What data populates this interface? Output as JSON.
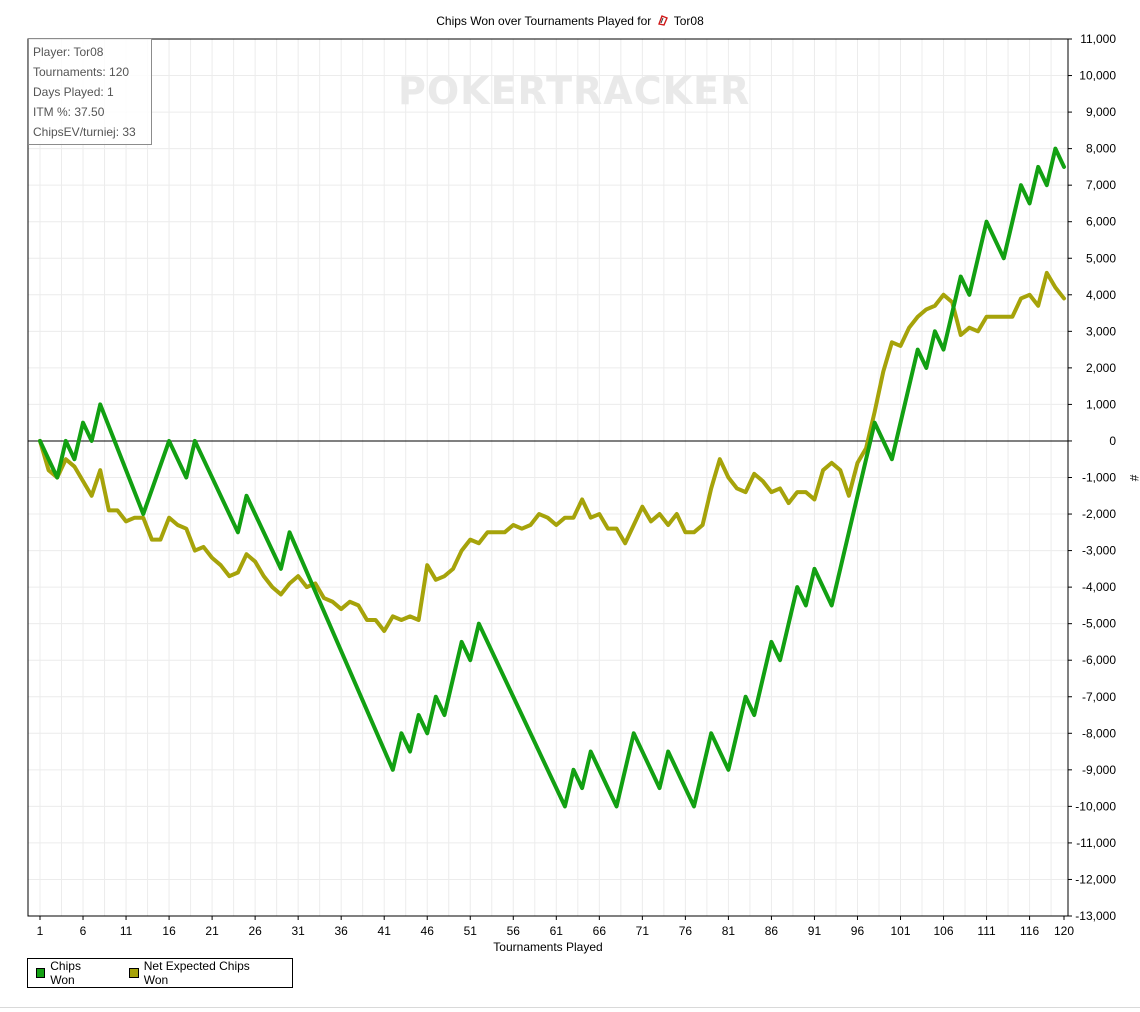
{
  "title": {
    "prefix": "Chips Won over Tournaments Played for",
    "player": "Tor08"
  },
  "stats": {
    "player": "Player: Tor08",
    "tournaments": "Tournaments: 120",
    "days_played": "Days Played: 1",
    "itm": "ITM %: 37.50",
    "chipsev": "ChipsEV/turniej: 33"
  },
  "watermark": "POKERTRACKER",
  "colors": {
    "chips_won": "#12a012",
    "net_expected": "#a6a30a",
    "grid": "#ececec",
    "zero_line": "#000000"
  },
  "chart_data": {
    "type": "line",
    "title": "Chips Won over Tournaments Played for Tor08",
    "xlabel": "Tournaments Played",
    "ylabel": "#",
    "xlim": [
      1,
      120
    ],
    "ylim": [
      -13000,
      11000
    ],
    "x_ticks": [
      1,
      6,
      11,
      16,
      21,
      26,
      31,
      36,
      41,
      46,
      51,
      56,
      61,
      66,
      71,
      76,
      81,
      86,
      91,
      96,
      101,
      106,
      111,
      116,
      120
    ],
    "y_ticks": [
      11000,
      10000,
      9000,
      8000,
      7000,
      6000,
      5000,
      4000,
      3000,
      2000,
      1000,
      0,
      -1000,
      -2000,
      -3000,
      -4000,
      -5000,
      -6000,
      -7000,
      -8000,
      -9000,
      -10000,
      -11000,
      -12000,
      -13000
    ],
    "y_tick_labels": [
      "11,000",
      "10,000",
      "9,000",
      "8,000",
      "7,000",
      "6,000",
      "5,000",
      "4,000",
      "3,000",
      "2,000",
      "1,000",
      "0",
      "-1,000",
      "-2,000",
      "-3,000",
      "-4,000",
      "-5,000",
      "-6,000",
      "-7,000",
      "-8,000",
      "-9,000",
      "-10,000",
      "-11,000",
      "-12,000",
      "-13,000"
    ],
    "grid": true,
    "legend_position": "bottom-left",
    "series": [
      {
        "name": "Chips Won",
        "color": "#12a012",
        "points": [
          [
            1,
            0
          ],
          [
            3,
            -1000
          ],
          [
            4,
            0
          ],
          [
            5,
            -500
          ],
          [
            6,
            500
          ],
          [
            7,
            0
          ],
          [
            8,
            1000
          ],
          [
            13,
            -2000
          ],
          [
            16,
            0
          ],
          [
            18,
            -1000
          ],
          [
            19,
            0
          ],
          [
            24,
            -2500
          ],
          [
            25,
            -1500
          ],
          [
            29,
            -3500
          ],
          [
            30,
            -2500
          ],
          [
            42,
            -9000
          ],
          [
            43,
            -8000
          ],
          [
            44,
            -8500
          ],
          [
            45,
            -7500
          ],
          [
            46,
            -8000
          ],
          [
            47,
            -7000
          ],
          [
            48,
            -7500
          ],
          [
            50,
            -5500
          ],
          [
            51,
            -6000
          ],
          [
            52,
            -5000
          ],
          [
            62,
            -10000
          ],
          [
            63,
            -9000
          ],
          [
            64,
            -9500
          ],
          [
            65,
            -8500
          ],
          [
            68,
            -10000
          ],
          [
            70,
            -8000
          ],
          [
            73,
            -9500
          ],
          [
            74,
            -8500
          ],
          [
            77,
            -10000
          ],
          [
            79,
            -8000
          ],
          [
            81,
            -9000
          ],
          [
            83,
            -7000
          ],
          [
            84,
            -7500
          ],
          [
            86,
            -5500
          ],
          [
            87,
            -6000
          ],
          [
            89,
            -4000
          ],
          [
            90,
            -4500
          ],
          [
            91,
            -3500
          ],
          [
            93,
            -4500
          ],
          [
            98,
            500
          ],
          [
            100,
            -500
          ],
          [
            103,
            2500
          ],
          [
            104,
            2000
          ],
          [
            105,
            3000
          ],
          [
            106,
            2500
          ],
          [
            108,
            4500
          ],
          [
            109,
            4000
          ],
          [
            111,
            6000
          ],
          [
            113,
            5000
          ],
          [
            115,
            7000
          ],
          [
            116,
            6500
          ],
          [
            117,
            7500
          ],
          [
            118,
            7000
          ],
          [
            119,
            8000
          ],
          [
            120,
            7500
          ]
        ]
      },
      {
        "name": "Net Expected Chips Won",
        "color": "#a6a30a",
        "points": [
          [
            1,
            0
          ],
          [
            2,
            -800
          ],
          [
            3,
            -1000
          ],
          [
            4,
            -500
          ],
          [
            5,
            -700
          ],
          [
            6,
            -1100
          ],
          [
            7,
            -1500
          ],
          [
            8,
            -800
          ],
          [
            9,
            -1900
          ],
          [
            10,
            -1900
          ],
          [
            11,
            -2200
          ],
          [
            12,
            -2100
          ],
          [
            13,
            -2100
          ],
          [
            14,
            -2700
          ],
          [
            15,
            -2700
          ],
          [
            16,
            -2100
          ],
          [
            17,
            -2300
          ],
          [
            18,
            -2400
          ],
          [
            19,
            -3000
          ],
          [
            20,
            -2900
          ],
          [
            21,
            -3200
          ],
          [
            22,
            -3400
          ],
          [
            23,
            -3700
          ],
          [
            24,
            -3600
          ],
          [
            25,
            -3100
          ],
          [
            26,
            -3300
          ],
          [
            27,
            -3700
          ],
          [
            28,
            -4000
          ],
          [
            29,
            -4200
          ],
          [
            30,
            -3900
          ],
          [
            31,
            -3700
          ],
          [
            32,
            -4000
          ],
          [
            33,
            -3900
          ],
          [
            34,
            -4300
          ],
          [
            35,
            -4400
          ],
          [
            36,
            -4600
          ],
          [
            37,
            -4400
          ],
          [
            38,
            -4500
          ],
          [
            39,
            -4900
          ],
          [
            40,
            -4900
          ],
          [
            41,
            -5200
          ],
          [
            42,
            -4800
          ],
          [
            43,
            -4900
          ],
          [
            44,
            -4800
          ],
          [
            45,
            -4900
          ],
          [
            46,
            -3400
          ],
          [
            47,
            -3800
          ],
          [
            48,
            -3700
          ],
          [
            49,
            -3500
          ],
          [
            50,
            -3000
          ],
          [
            51,
            -2700
          ],
          [
            52,
            -2800
          ],
          [
            53,
            -2500
          ],
          [
            54,
            -2500
          ],
          [
            55,
            -2500
          ],
          [
            56,
            -2300
          ],
          [
            57,
            -2400
          ],
          [
            58,
            -2300
          ],
          [
            59,
            -2000
          ],
          [
            60,
            -2100
          ],
          [
            61,
            -2300
          ],
          [
            62,
            -2100
          ],
          [
            63,
            -2100
          ],
          [
            64,
            -1600
          ],
          [
            65,
            -2100
          ],
          [
            66,
            -2000
          ],
          [
            67,
            -2400
          ],
          [
            68,
            -2400
          ],
          [
            69,
            -2800
          ],
          [
            70,
            -2300
          ],
          [
            71,
            -1800
          ],
          [
            72,
            -2200
          ],
          [
            73,
            -2000
          ],
          [
            74,
            -2300
          ],
          [
            75,
            -2000
          ],
          [
            76,
            -2500
          ],
          [
            77,
            -2500
          ],
          [
            78,
            -2300
          ],
          [
            79,
            -1300
          ],
          [
            80,
            -500
          ],
          [
            81,
            -1000
          ],
          [
            82,
            -1300
          ],
          [
            83,
            -1400
          ],
          [
            84,
            -900
          ],
          [
            85,
            -1100
          ],
          [
            86,
            -1400
          ],
          [
            87,
            -1300
          ],
          [
            88,
            -1700
          ],
          [
            89,
            -1400
          ],
          [
            90,
            -1400
          ],
          [
            91,
            -1600
          ],
          [
            92,
            -800
          ],
          [
            93,
            -600
          ],
          [
            94,
            -800
          ],
          [
            95,
            -1500
          ],
          [
            96,
            -600
          ],
          [
            97,
            -200
          ],
          [
            98,
            800
          ],
          [
            99,
            1900
          ],
          [
            100,
            2700
          ],
          [
            101,
            2600
          ],
          [
            102,
            3100
          ],
          [
            103,
            3400
          ],
          [
            104,
            3600
          ],
          [
            105,
            3700
          ],
          [
            106,
            4000
          ],
          [
            107,
            3800
          ],
          [
            108,
            2900
          ],
          [
            109,
            3100
          ],
          [
            110,
            3000
          ],
          [
            111,
            3400
          ],
          [
            112,
            3400
          ],
          [
            113,
            3400
          ],
          [
            114,
            3400
          ],
          [
            115,
            3900
          ],
          [
            116,
            4000
          ],
          [
            117,
            3700
          ],
          [
            118,
            4600
          ],
          [
            119,
            4200
          ],
          [
            120,
            3900
          ]
        ]
      }
    ]
  },
  "legend": {
    "chips_won": "Chips Won",
    "net_expected": "Net Expected Chips Won"
  }
}
